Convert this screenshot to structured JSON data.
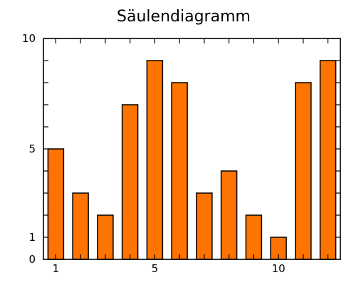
{
  "chart_data": {
    "type": "bar",
    "title": "Säulendiagramm",
    "xlabel": "",
    "ylabel": "",
    "categories": [
      1,
      2,
      3,
      4,
      5,
      6,
      7,
      8,
      9,
      10,
      11,
      12
    ],
    "values": [
      5,
      3,
      2,
      7,
      9,
      8,
      3,
      4,
      2,
      1,
      8,
      9
    ],
    "xlim": [
      0.5,
      12.5
    ],
    "ylim": [
      0,
      10
    ],
    "x_tick_labels": [
      {
        "x": 1,
        "label": "1"
      },
      {
        "x": 5,
        "label": "5"
      },
      {
        "x": 10,
        "label": "10"
      }
    ],
    "y_tick_labels": [
      {
        "y": 0,
        "label": "0"
      },
      {
        "y": 1,
        "label": "1"
      },
      {
        "y": 5,
        "label": "5"
      },
      {
        "y": 10,
        "label": "10"
      }
    ],
    "y_minor_ticks": [
      1,
      2,
      3,
      4,
      5,
      6,
      7,
      8,
      9
    ],
    "grid": false,
    "legend": "none",
    "bar_color": "#ff7400"
  }
}
